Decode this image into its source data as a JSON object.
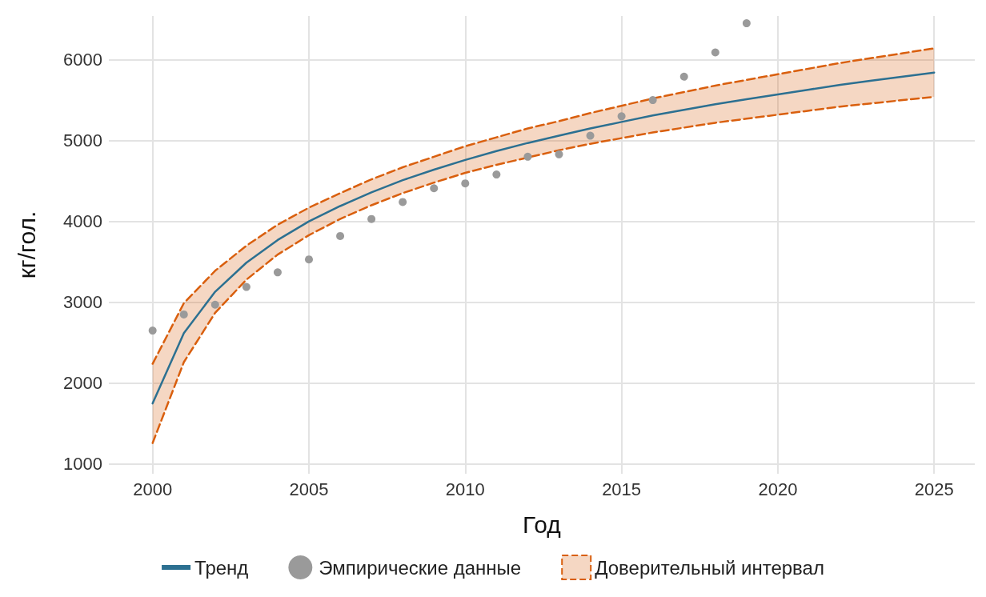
{
  "chart_data": {
    "type": "line",
    "xlabel": "Год",
    "ylabel": "кг/гол.",
    "x": [
      2000,
      2001,
      2002,
      2003,
      2004,
      2005,
      2006,
      2007,
      2008,
      2009,
      2010,
      2011,
      2012,
      2013,
      2014,
      2015,
      2016,
      2017,
      2018,
      2019,
      2020,
      2021,
      2022,
      2023,
      2024,
      2025
    ],
    "series": [
      {
        "name": "Тренд",
        "color": "#2c7091",
        "marker": "none",
        "line_style": "solid",
        "values": [
          1750,
          2620,
          3130,
          3490,
          3770,
          4000,
          4190,
          4360,
          4510,
          4640,
          4760,
          4870,
          4970,
          5060,
          5150,
          5230,
          5310,
          5380,
          5450,
          5510,
          5570,
          5630,
          5690,
          5740,
          5790,
          5840
        ]
      },
      {
        "name": "Эмпирические данные",
        "type": "scatter",
        "color": "#9a9a9a",
        "marker": "circle",
        "x": [
          2000,
          2001,
          2002,
          2003,
          2004,
          2005,
          2006,
          2007,
          2008,
          2009,
          2010,
          2011,
          2012,
          2013,
          2014,
          2015,
          2016,
          2017,
          2018,
          2019
        ],
        "values": [
          2650,
          2850,
          2970,
          3190,
          3370,
          3530,
          3820,
          4030,
          4240,
          4410,
          4470,
          4580,
          4800,
          4830,
          5060,
          5300,
          5500,
          5790,
          6090,
          6450
        ]
      },
      {
        "name": "Доверительный интервал",
        "type": "area",
        "color": "#d95f0e",
        "line_style": "dashed",
        "values": [
          null,
          null,
          null,
          null,
          null,
          null,
          null,
          null,
          null,
          null,
          null,
          null,
          null,
          null,
          null,
          null,
          null,
          null,
          null,
          null,
          null,
          null,
          null,
          null,
          null,
          null
        ],
        "lower": [
          1260,
          2260,
          2870,
          3280,
          3590,
          3830,
          4030,
          4200,
          4350,
          4480,
          4600,
          4700,
          4790,
          4880,
          4960,
          5030,
          5100,
          5160,
          5220,
          5270,
          5320,
          5370,
          5420,
          5460,
          5500,
          5540
        ],
        "upper": [
          2240,
          2990,
          3390,
          3700,
          3960,
          4170,
          4350,
          4520,
          4670,
          4800,
          4930,
          5040,
          5150,
          5240,
          5340,
          5430,
          5520,
          5600,
          5680,
          5750,
          5820,
          5890,
          5960,
          6020,
          6080,
          6140
        ]
      },
      {
        "type": "line",
        "color": "#d95f0e",
        "marker": "none",
        "line_style": "dashed",
        "values": [
          1260,
          2260,
          2870,
          3280,
          3590,
          3830,
          4030,
          4200,
          4350,
          4480,
          4600,
          4700,
          4790,
          4880,
          4960,
          5030,
          5100,
          5160,
          5220,
          5270,
          5320,
          5370,
          5420,
          5460,
          5500,
          5540
        ]
      },
      {
        "type": "line",
        "color": "#d95f0e",
        "marker": "none",
        "line_style": "dashed",
        "values": [
          2240,
          2990,
          3390,
          3700,
          3960,
          4170,
          4350,
          4520,
          4670,
          4800,
          4930,
          5040,
          5150,
          5240,
          5340,
          5430,
          5520,
          5600,
          5680,
          5750,
          5820,
          5890,
          5960,
          6020,
          6080,
          6140
        ]
      }
    ],
    "xlim": [
      1998.6,
      2026.3
    ],
    "xticks": [
      2000,
      2005,
      2010,
      2015,
      2020,
      2025
    ],
    "ylim": [
      880,
      6540
    ],
    "yticks": [
      1000,
      2000,
      3000,
      4000,
      5000,
      6000
    ],
    "grid": true,
    "legend": "bottom"
  }
}
